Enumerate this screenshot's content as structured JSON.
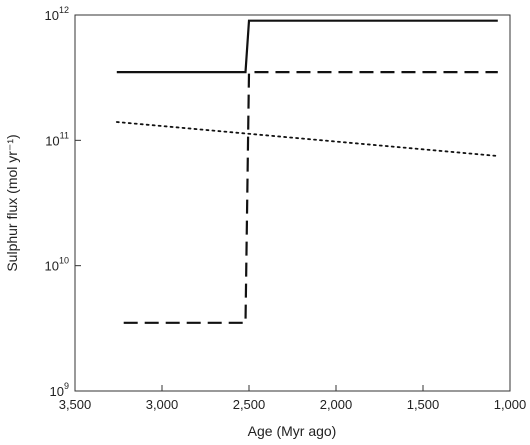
{
  "chart_data": {
    "type": "line",
    "xlabel": "Age (Myr ago)",
    "ylabel": "Sulphur flux (mol yr⁻¹)",
    "x_reversed": true,
    "y_scale": "log",
    "xlim": [
      3500,
      1000
    ],
    "ylim": [
      1000000000.0,
      1000000000000.0
    ],
    "x_ticks": [
      {
        "value": 3500,
        "label": "3,500"
      },
      {
        "value": 3000,
        "label": "3,000"
      },
      {
        "value": 2500,
        "label": "2,500"
      },
      {
        "value": 2000,
        "label": "2,000"
      },
      {
        "value": 1500,
        "label": "1,500"
      },
      {
        "value": 1000,
        "label": "1,000"
      }
    ],
    "y_ticks": [
      {
        "value": 1000000000.0,
        "base": "10",
        "exp": "9"
      },
      {
        "value": 10000000000.0,
        "base": "10",
        "exp": "10"
      },
      {
        "value": 100000000000.0,
        "base": "10",
        "exp": "11"
      },
      {
        "value": 1000000000000.0,
        "base": "10",
        "exp": "12"
      }
    ],
    "series": [
      {
        "style": "solid",
        "color": "#111111",
        "x": [
          3260,
          2520,
          2500,
          1070
        ],
        "y": [
          350000000000.0,
          350000000000.0,
          900000000000.0,
          900000000000.0
        ]
      },
      {
        "style": "dashed",
        "color": "#111111",
        "x": [
          3220,
          2520,
          2500,
          1070
        ],
        "y": [
          3500000000.0,
          3500000000.0,
          350000000000.0,
          350000000000.0
        ]
      },
      {
        "style": "dotted",
        "color": "#111111",
        "x": [
          3260,
          1070
        ],
        "y": [
          140000000000.0,
          75000000000.0
        ]
      }
    ]
  }
}
